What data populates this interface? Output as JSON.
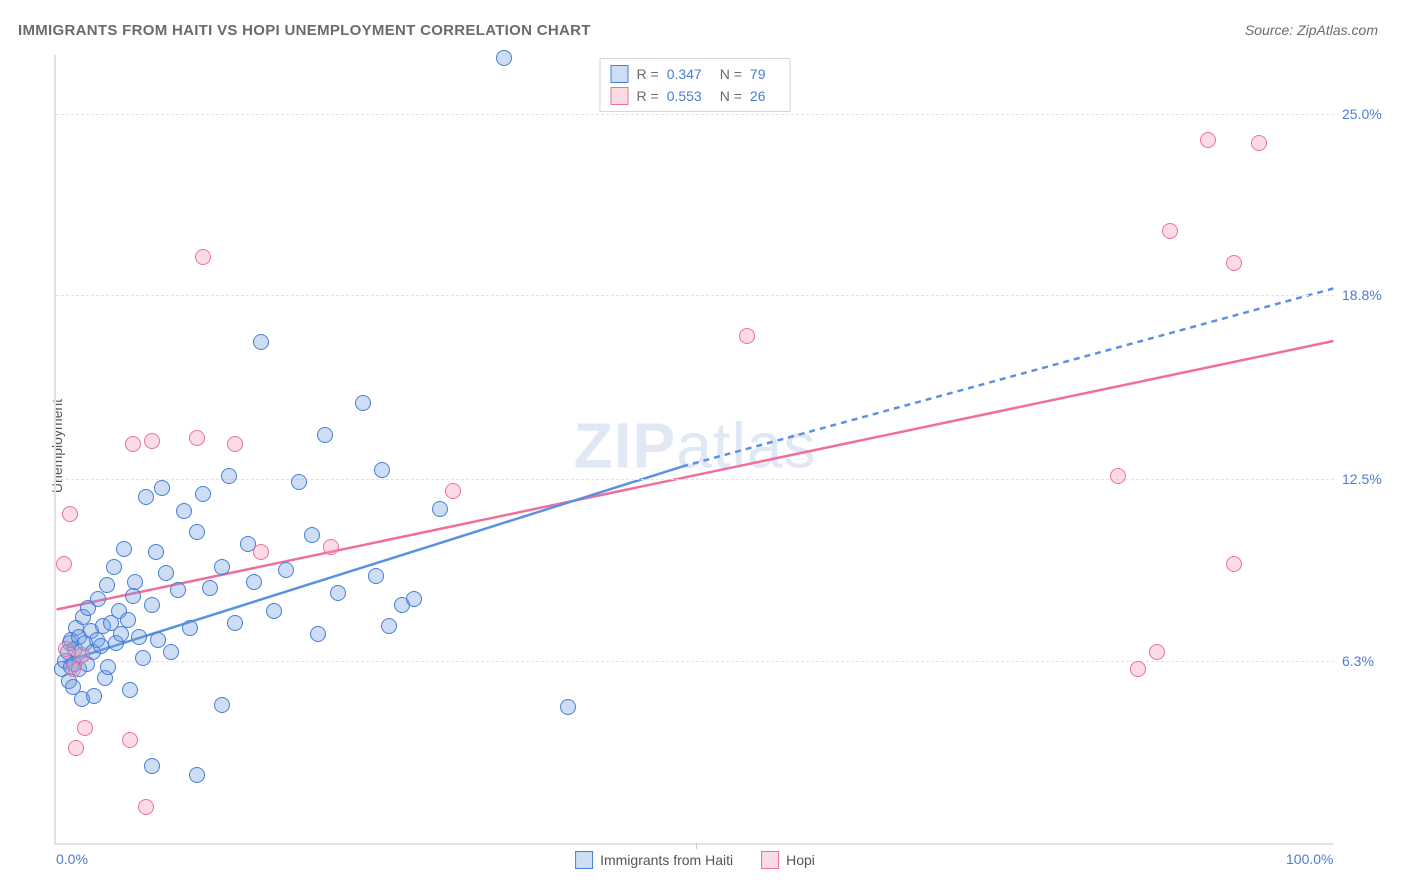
{
  "title": "IMMIGRANTS FROM HAITI VS HOPI UNEMPLOYMENT CORRELATION CHART",
  "source": "Source: ZipAtlas.com",
  "ylabel": "Unemployment",
  "watermark_zip": "ZIP",
  "watermark_atlas": "atlas",
  "chart": {
    "type": "scatter",
    "background_color": "#ffffff",
    "grid_color": "#e3e3e3",
    "axis_color": "#e3e3e3",
    "tick_label_color": "#4a7dd6",
    "xlim": [
      0,
      100
    ],
    "ylim": [
      0,
      27
    ],
    "yticks": [
      {
        "v": 6.3,
        "label": "6.3%"
      },
      {
        "v": 12.5,
        "label": "12.5%"
      },
      {
        "v": 18.8,
        "label": "18.8%"
      },
      {
        "v": 25.0,
        "label": "25.0%"
      }
    ],
    "xticks": [
      {
        "v": 0,
        "label": "0.0%"
      },
      {
        "v": 100,
        "label": "100.0%"
      }
    ],
    "xtick_mark": 50,
    "marker_radius": 8,
    "marker_fill_opacity": 0.35,
    "line_width": 2.5,
    "series": [
      {
        "key": "haiti",
        "label": "Immigrants from Haiti",
        "color": "#5b92e0",
        "fill": "rgba(108,158,224,0.35)",
        "stroke": "#4a7dd6",
        "R": "0.347",
        "N": "79",
        "trend": {
          "x1": 0.5,
          "y1": 6.2,
          "x2": 49,
          "y2": 12.9,
          "dash_x2": 100,
          "dash_y2": 19.0
        },
        "points": [
          [
            0.5,
            6.0
          ],
          [
            0.7,
            6.3
          ],
          [
            0.9,
            6.6
          ],
          [
            1.0,
            5.6
          ],
          [
            1.1,
            6.9
          ],
          [
            1.2,
            7.0
          ],
          [
            1.2,
            6.1
          ],
          [
            1.3,
            5.4
          ],
          [
            1.4,
            6.2
          ],
          [
            1.5,
            6.7
          ],
          [
            1.6,
            7.4
          ],
          [
            1.8,
            6.0
          ],
          [
            1.8,
            7.1
          ],
          [
            2.0,
            6.5
          ],
          [
            2.0,
            5.0
          ],
          [
            2.1,
            7.8
          ],
          [
            2.3,
            6.9
          ],
          [
            2.4,
            6.2
          ],
          [
            2.5,
            8.1
          ],
          [
            2.7,
            7.3
          ],
          [
            2.9,
            6.6
          ],
          [
            3.0,
            5.1
          ],
          [
            3.2,
            7.0
          ],
          [
            3.3,
            8.4
          ],
          [
            3.5,
            6.8
          ],
          [
            3.7,
            7.5
          ],
          [
            3.8,
            5.7
          ],
          [
            4.0,
            8.9
          ],
          [
            4.1,
            6.1
          ],
          [
            4.3,
            7.6
          ],
          [
            4.5,
            9.5
          ],
          [
            4.7,
            6.9
          ],
          [
            4.9,
            8.0
          ],
          [
            5.1,
            7.2
          ],
          [
            5.3,
            10.1
          ],
          [
            5.6,
            7.7
          ],
          [
            5.8,
            5.3
          ],
          [
            6.0,
            8.5
          ],
          [
            6.2,
            9.0
          ],
          [
            6.5,
            7.1
          ],
          [
            6.8,
            6.4
          ],
          [
            7.0,
            11.9
          ],
          [
            7.5,
            8.2
          ],
          [
            7.8,
            10.0
          ],
          [
            8.0,
            7.0
          ],
          [
            8.3,
            12.2
          ],
          [
            8.6,
            9.3
          ],
          [
            9.0,
            6.6
          ],
          [
            9.5,
            8.7
          ],
          [
            10.0,
            11.4
          ],
          [
            10.5,
            7.4
          ],
          [
            11.0,
            10.7
          ],
          [
            11.5,
            12.0
          ],
          [
            12.0,
            8.8
          ],
          [
            13.0,
            9.5
          ],
          [
            13.5,
            12.6
          ],
          [
            14.0,
            7.6
          ],
          [
            15.0,
            10.3
          ],
          [
            15.5,
            9.0
          ],
          [
            16.0,
            17.2
          ],
          [
            17.0,
            8.0
          ],
          [
            18.0,
            9.4
          ],
          [
            19.0,
            12.4
          ],
          [
            20.0,
            10.6
          ],
          [
            20.5,
            7.2
          ],
          [
            21.0,
            14.0
          ],
          [
            22.0,
            8.6
          ],
          [
            24.0,
            15.1
          ],
          [
            25.0,
            9.2
          ],
          [
            25.5,
            12.8
          ],
          [
            26.0,
            7.5
          ],
          [
            27.0,
            8.2
          ],
          [
            28.0,
            8.4
          ],
          [
            30.0,
            11.5
          ],
          [
            35.0,
            26.9
          ],
          [
            40.0,
            4.7
          ],
          [
            11.0,
            2.4
          ],
          [
            7.5,
            2.7
          ],
          [
            13.0,
            4.8
          ]
        ]
      },
      {
        "key": "hopi",
        "label": "Hopi",
        "color": "#ef6f9a",
        "fill": "rgba(244,154,180,0.35)",
        "stroke": "#ef6f9a",
        "R": "0.553",
        "N": "26",
        "trend": {
          "x1": 0,
          "y1": 8.0,
          "x2": 100,
          "y2": 17.2
        },
        "points": [
          [
            0.6,
            9.6
          ],
          [
            0.8,
            6.7
          ],
          [
            1.1,
            11.3
          ],
          [
            1.3,
            6.0
          ],
          [
            1.6,
            3.3
          ],
          [
            2.0,
            6.5
          ],
          [
            5.8,
            3.6
          ],
          [
            6.0,
            13.7
          ],
          [
            7.0,
            1.3
          ],
          [
            7.5,
            13.8
          ],
          [
            11.0,
            13.9
          ],
          [
            11.5,
            20.1
          ],
          [
            14.0,
            13.7
          ],
          [
            16.0,
            10.0
          ],
          [
            21.5,
            10.2
          ],
          [
            31.0,
            12.1
          ],
          [
            54.0,
            17.4
          ],
          [
            83.0,
            12.6
          ],
          [
            84.5,
            6.0
          ],
          [
            86.0,
            6.6
          ],
          [
            87.0,
            21.0
          ],
          [
            90.0,
            24.1
          ],
          [
            92.0,
            19.9
          ],
          [
            94.0,
            24.0
          ],
          [
            92.0,
            9.6
          ],
          [
            2.3,
            4.0
          ]
        ]
      }
    ]
  },
  "legend_corr_prefix_R": "R =",
  "legend_corr_prefix_N": "N ="
}
